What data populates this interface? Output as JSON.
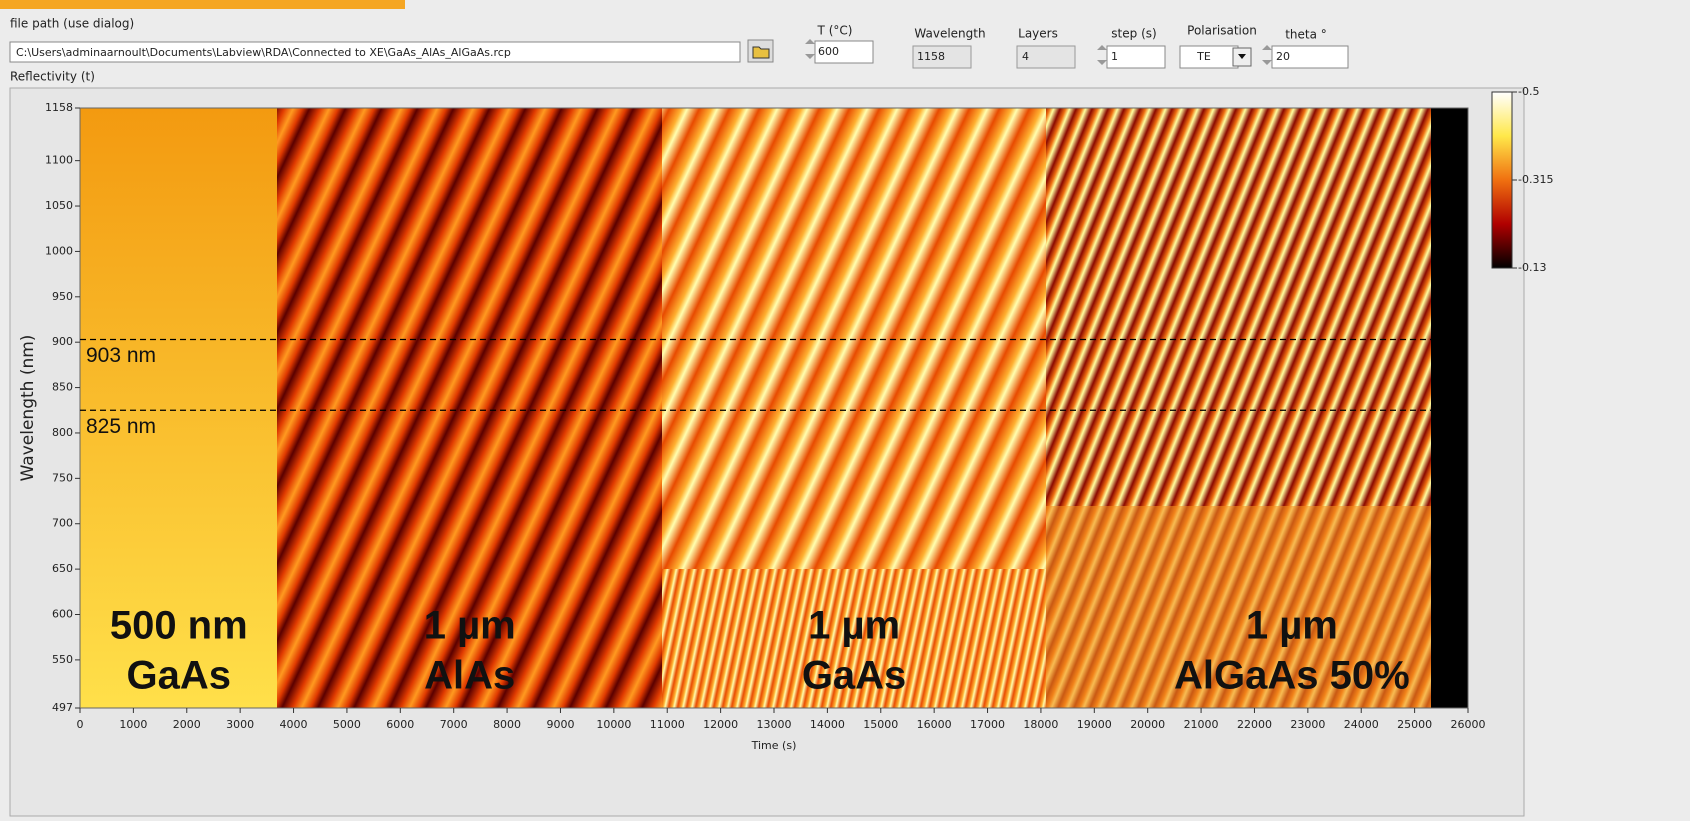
{
  "controls": {
    "file_path": {
      "label": "file path (use dialog)",
      "value": "C:\\Users\\adminaarnoult\\Documents\\Labview\\RDA\\Connected to XE\\GaAs_AlAs_AlGaAs.rcp"
    },
    "temperature": {
      "label": "T (°C)",
      "value": 600
    },
    "wavelength": {
      "label": "Wavelength",
      "value": 1158
    },
    "layers": {
      "label": "Layers",
      "value": 4
    },
    "step": {
      "label": "step (s)",
      "value": 1
    },
    "polarisation": {
      "label": "Polarisation",
      "value": "TE"
    },
    "theta": {
      "label": "theta °",
      "value": 20
    }
  },
  "chart_data": {
    "type": "heatmap",
    "title": "Reflectivity (t)",
    "xlabel": "Time (s)",
    "ylabel": "Wavelength (nm)",
    "xlim": [
      0,
      26000
    ],
    "xticks": [
      0,
      1000,
      2000,
      3000,
      4000,
      5000,
      6000,
      7000,
      8000,
      9000,
      10000,
      11000,
      12000,
      13000,
      14000,
      15000,
      16000,
      17000,
      18000,
      19000,
      20000,
      21000,
      22000,
      23000,
      24000,
      25000,
      26000
    ],
    "ylim": [
      497,
      1158
    ],
    "yticks": [
      497,
      550,
      600,
      650,
      700,
      750,
      800,
      850,
      900,
      950,
      1000,
      1050,
      1100,
      1158
    ],
    "colorbar": {
      "lim": [
        -0.13,
        -0.5
      ],
      "ticks": [
        -0.5,
        -0.315,
        -0.13
      ]
    },
    "hlines": [
      {
        "value": 903,
        "label": "903 nm"
      },
      {
        "value": 825,
        "label": "825 nm"
      }
    ],
    "annotations": [
      {
        "lines": [
          "500 nm",
          "GaAs"
        ]
      },
      {
        "lines": [
          "1 µm",
          "AlAs"
        ]
      },
      {
        "lines": [
          "1 µm",
          "GaAs"
        ]
      },
      {
        "lines": [
          "1 µm",
          "AlGaAs 50%"
        ]
      }
    ]
  }
}
